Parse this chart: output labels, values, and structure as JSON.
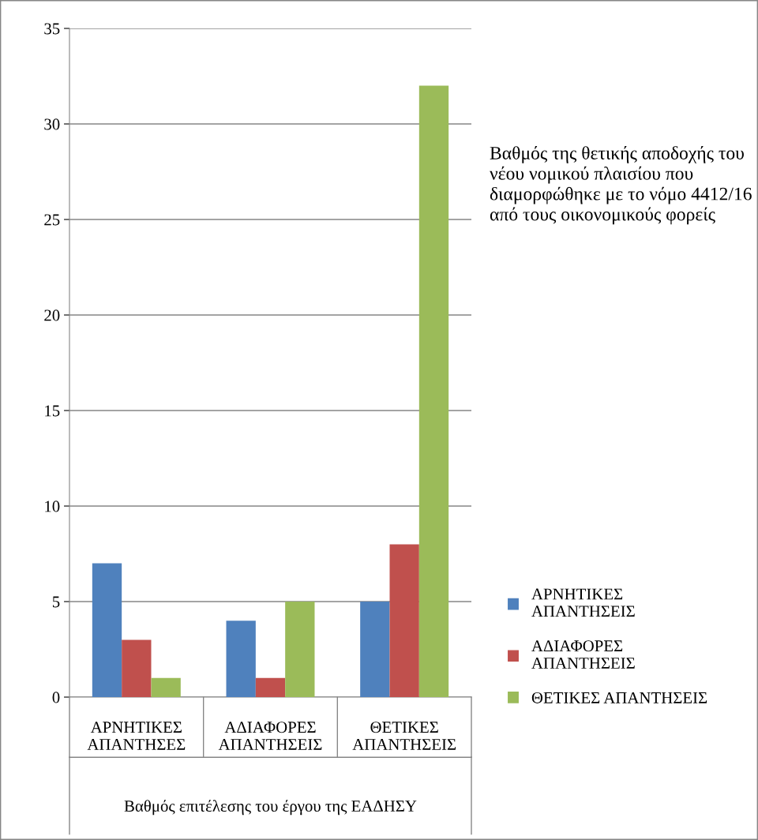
{
  "chart_data": {
    "type": "bar",
    "title": "Βαθμός της θετικής αποδοχής του νέου νομικού πλαισίου που διαμορφώθηκε με το νόμο 4412/16 από τους οικονομικούς φορείς",
    "xlabel": "Βαθμός επιτέλεσης του έργου της ΕΑΔΗΣΥ",
    "categories": [
      "ΑΡΝΗΤΙΚΕΣ ΑΠΑΝΤΗΣΕΣ",
      "ΑΔΙΑΦΟΡΕΣ ΑΠΑΝΤΗΣΕΙΣ",
      "ΘΕΤΙΚΕΣ ΑΠΑΝΤΗΣΕΙΣ"
    ],
    "series": [
      {
        "name": "ΑΡΝΗΤΙΚΕΣ ΑΠΑΝΤΗΣΕΙΣ",
        "color": "#4f81bd",
        "values": [
          7,
          4,
          5
        ]
      },
      {
        "name": "ΑΔΙΑΦΟΡΕΣ ΑΠΑΝΤΗΣΕΙΣ",
        "color": "#c0504d",
        "values": [
          3,
          1,
          8
        ]
      },
      {
        "name": "ΘΕΤΙΚΕΣ ΑΠΑΝΤΗΣΕΙΣ",
        "color": "#9bbb59",
        "values": [
          1,
          5,
          32
        ]
      }
    ],
    "ylim": [
      0,
      35
    ],
    "yticks": [
      0,
      5,
      10,
      15,
      20,
      25,
      30,
      35
    ],
    "grid": "y",
    "legend": "right"
  }
}
